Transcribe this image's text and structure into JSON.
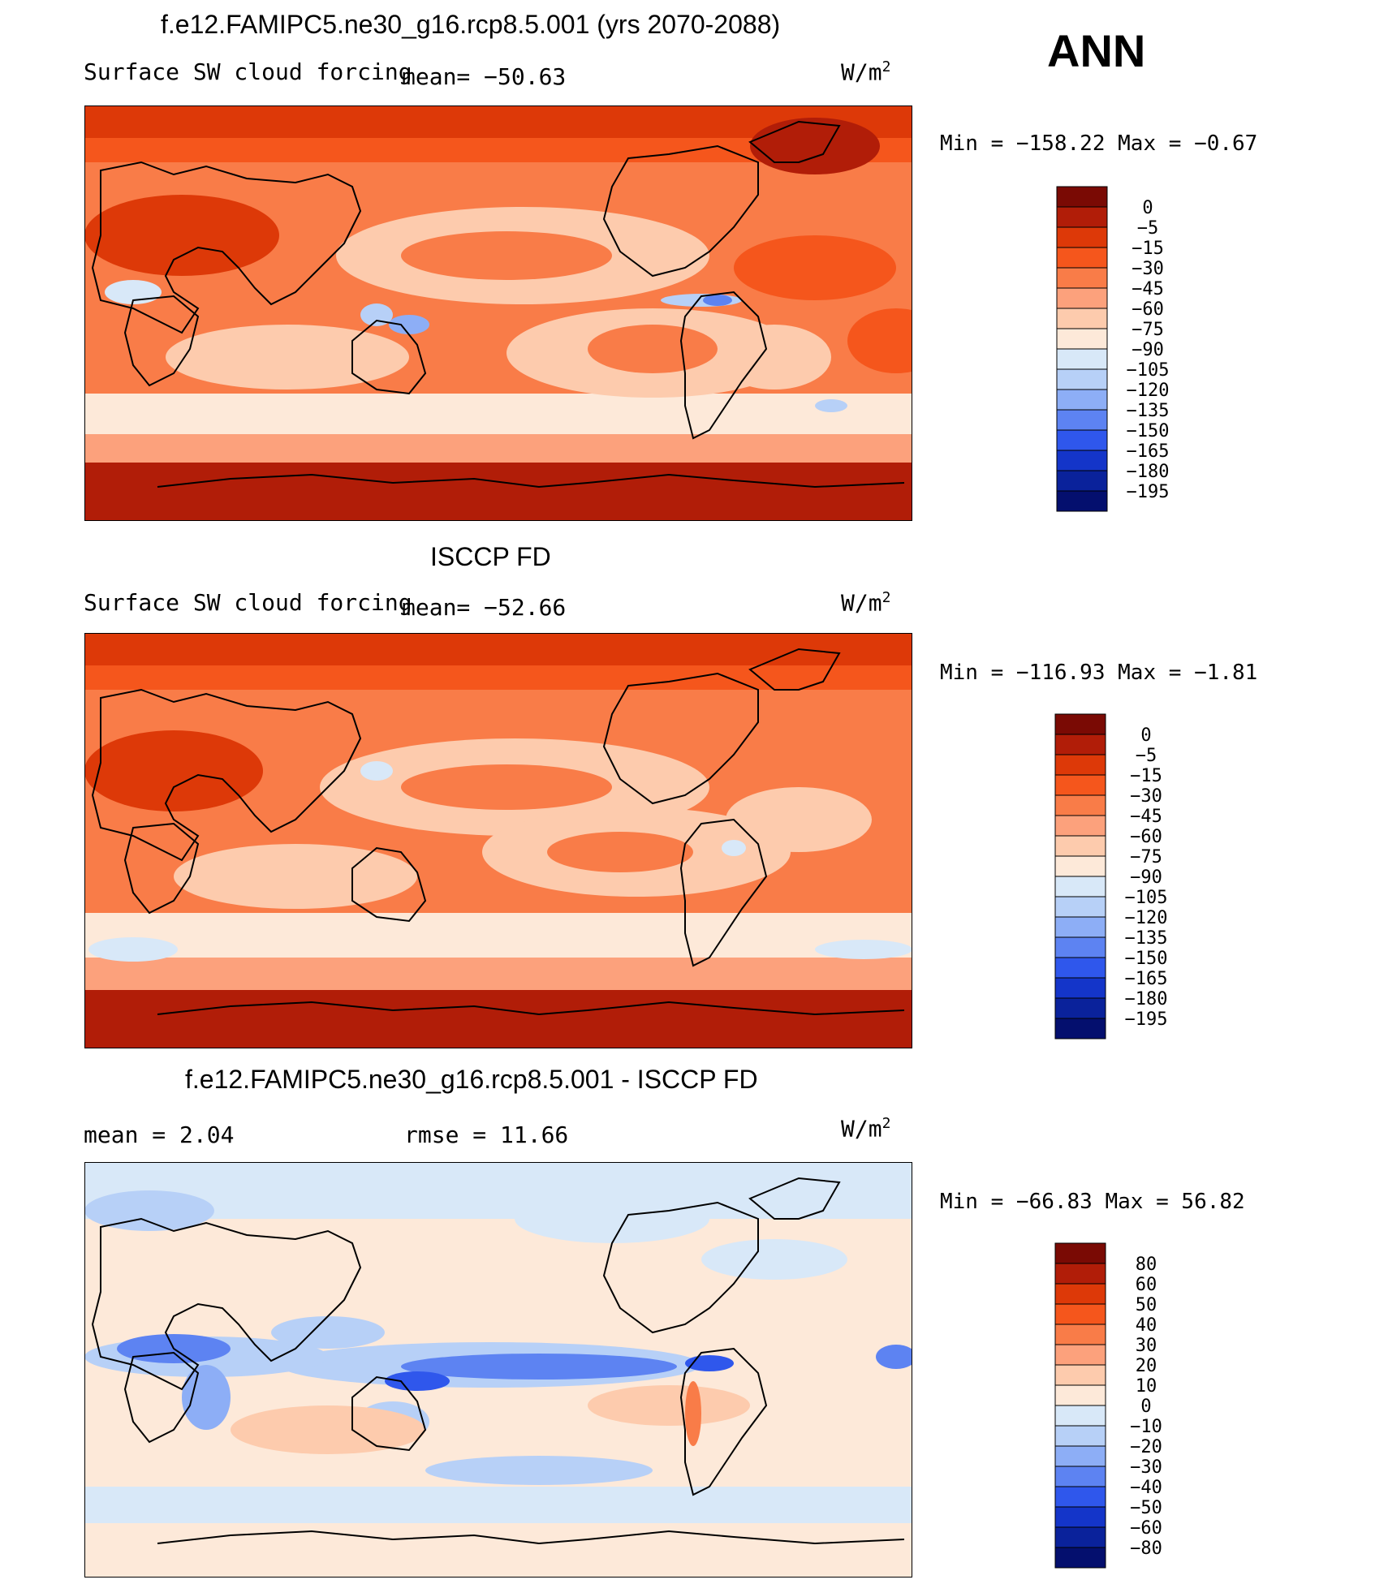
{
  "season_label": "ANN",
  "units": "W/m",
  "units_sup": "2",
  "panels": [
    {
      "title": "f.e12.FAMIPC5.ne30_g16.rcp8.5.001 (yrs 2070-2088)",
      "variable": "Surface SW cloud forcing",
      "stat_text": "mean=  −50.63",
      "min_max": "Min  =  −158.22  Max  =    −0.67",
      "legend_labels": [
        "0",
        "−5",
        "−15",
        "−30",
        "−45",
        "−60",
        "−75",
        "−90",
        "−105",
        "−120",
        "−135",
        "−150",
        "−165",
        "−180",
        "−195"
      ]
    },
    {
      "title": "ISCCP FD",
      "variable": "Surface SW cloud forcing",
      "stat_text": "mean=  −52.66",
      "min_max": "Min  =  −116.93  Max  =    −1.81",
      "legend_labels": [
        "0",
        "−5",
        "−15",
        "−30",
        "−45",
        "−60",
        "−75",
        "−90",
        "−105",
        "−120",
        "−135",
        "−150",
        "−165",
        "−180",
        "−195"
      ]
    },
    {
      "title": "f.e12.FAMIPC5.ne30_g16.rcp8.5.001 - ISCCP FD",
      "mean_text": "mean  =     2.04",
      "rmse_text": "rmse  =    11.66",
      "min_max": "Min  =  −66.83  Max  =    56.82",
      "legend_labels": [
        "80",
        "60",
        "50",
        "40",
        "30",
        "20",
        "10",
        "0",
        "−10",
        "−20",
        "−30",
        "−40",
        "−50",
        "−60",
        "−80"
      ]
    }
  ],
  "legend_colors": [
    "#7a0a04",
    "#b11d08",
    "#dd3908",
    "#f5561c",
    "#f97c48",
    "#fca17c",
    "#fdcbad",
    "#fde9d9",
    "#d8e8f8",
    "#b7d0f7",
    "#8daef6",
    "#5d83f2",
    "#2f57ec",
    "#1435c9",
    "#0a229b",
    "#040f6e"
  ]
}
